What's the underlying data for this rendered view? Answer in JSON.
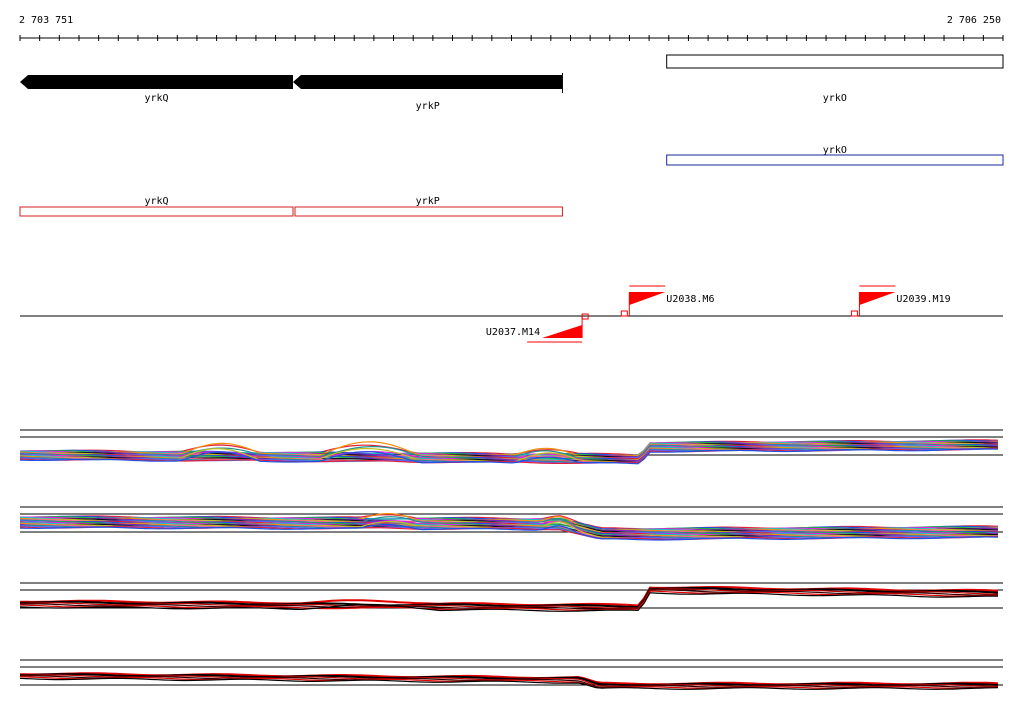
{
  "coordinates": {
    "start_label": "2 703 751",
    "end_label": "2 706 250",
    "start": 2703751,
    "end": 2706250
  },
  "colors": {
    "gene_fill": "#000000",
    "annotation_blue": "#1a2aa0",
    "annotation_red": "#d42020",
    "marker_red": "#ff0000",
    "track_line": "#000000"
  },
  "genes": [
    {
      "name": "yrkQ",
      "strand": "-",
      "start": 2703751,
      "end": 2704445
    },
    {
      "name": "yrkP",
      "strand": "-",
      "start": 2704445,
      "end": 2705130
    },
    {
      "name": "yrkO",
      "strand": "+",
      "start": 2705395,
      "end": 2706250,
      "style": "open"
    }
  ],
  "annotations_blue": [
    {
      "name": "yrkO",
      "start": 2705395,
      "end": 2706250
    }
  ],
  "annotations_red": [
    {
      "name": "yrkQ",
      "start": 2703751,
      "end": 2704445
    },
    {
      "name": "yrkP",
      "start": 2704445,
      "end": 2705130
    }
  ],
  "markers": [
    {
      "name": "U2037.M14",
      "pos": 2705180,
      "side": "bottom"
    },
    {
      "name": "U2038.M6",
      "pos": 2705300,
      "side": "top"
    },
    {
      "name": "U2039.M19",
      "pos": 2705885,
      "side": "top"
    }
  ],
  "expression_tracks": [
    {
      "id": "track-1",
      "palette": "multicolor"
    },
    {
      "id": "track-2",
      "palette": "multicolor"
    },
    {
      "id": "track-3",
      "palette": "red-black"
    },
    {
      "id": "track-4",
      "palette": "red-black"
    }
  ]
}
